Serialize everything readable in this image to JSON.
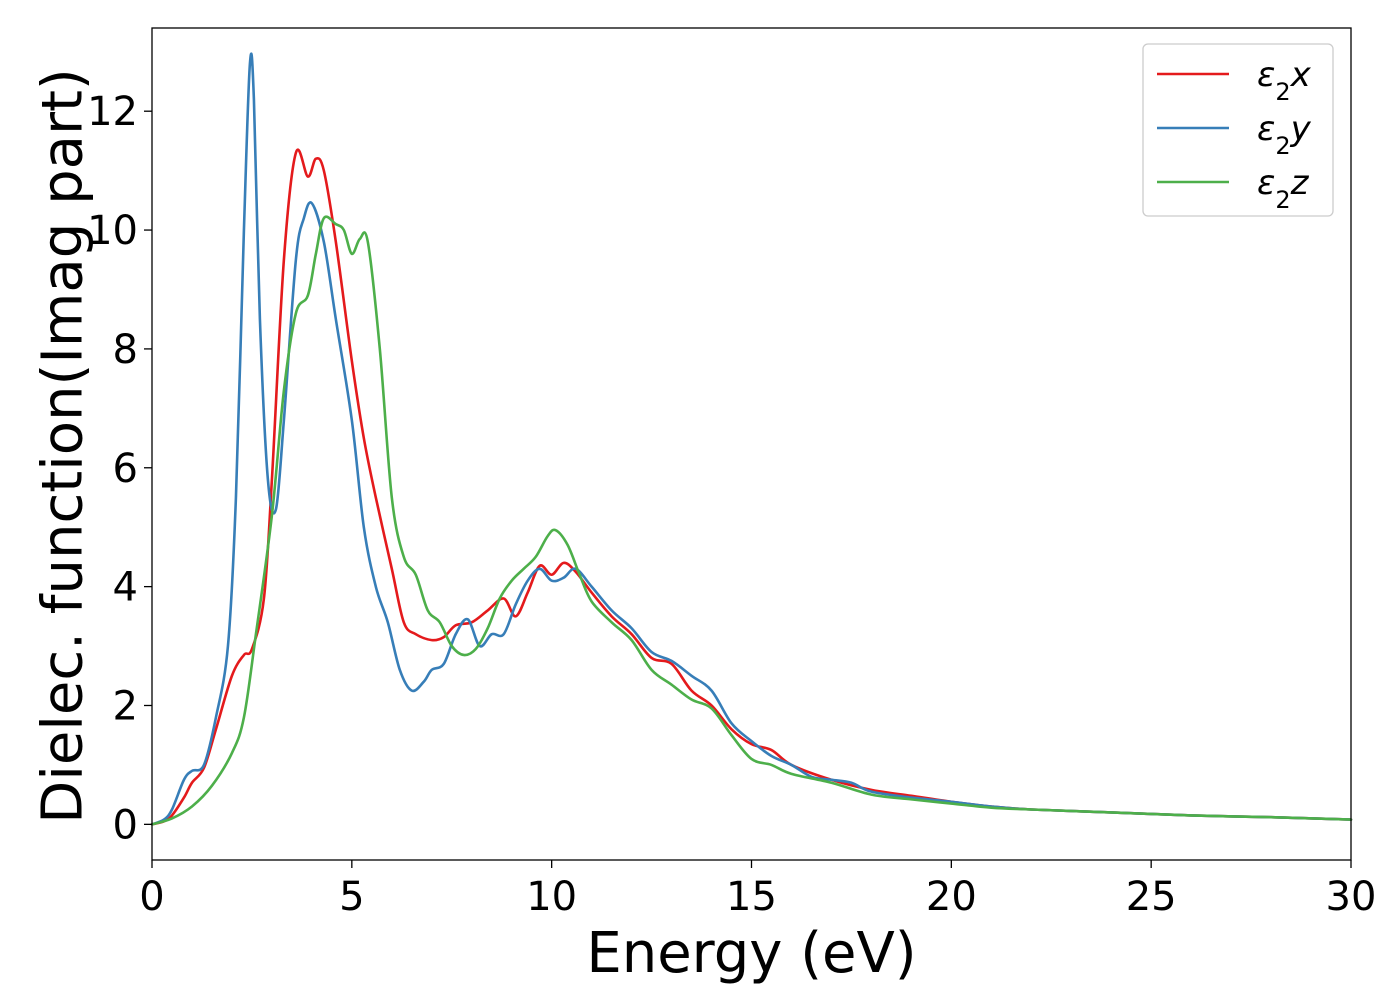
{
  "chart_data": {
    "type": "line",
    "title": "",
    "xlabel": "Energy (eV)",
    "ylabel": "Dielec. function(Imag part)",
    "xlim": [
      0,
      30
    ],
    "ylim": [
      -0.6,
      13.4
    ],
    "xticks": [
      0,
      5,
      10,
      15,
      20,
      25,
      30
    ],
    "xtick_labels": [
      "0",
      "5",
      "10",
      "15",
      "20",
      "25",
      "30"
    ],
    "yticks": [
      0,
      2,
      4,
      6,
      8,
      10,
      12
    ],
    "ytick_labels": [
      "0",
      "2",
      "4",
      "6",
      "8",
      "10",
      "12"
    ],
    "grid": false,
    "legend_position": "top-right",
    "series": [
      {
        "name": "ε2x",
        "legend_base": "ε",
        "legend_sub": "2",
        "legend_var": "x",
        "color": "#e41a1c",
        "x": [
          0,
          0.3,
          0.5,
          0.8,
          1.0,
          1.3,
          1.6,
          2.0,
          2.3,
          2.5,
          2.8,
          3.0,
          3.3,
          3.6,
          3.9,
          4.1,
          4.3,
          4.6,
          5.0,
          5.3,
          5.6,
          6.0,
          6.3,
          6.6,
          7.0,
          7.3,
          7.6,
          8.0,
          8.4,
          8.8,
          9.1,
          9.4,
          9.7,
          10.0,
          10.3,
          10.6,
          11.0,
          11.5,
          12.0,
          12.5,
          13.0,
          13.5,
          14.0,
          14.5,
          15.0,
          15.5,
          16.0,
          17.0,
          18.0,
          19.0,
          20.0,
          21.0,
          22.0,
          24.0,
          26.0,
          28.0,
          30.0
        ],
        "y": [
          0,
          0.05,
          0.15,
          0.45,
          0.7,
          0.95,
          1.6,
          2.5,
          2.85,
          2.95,
          3.8,
          5.8,
          9.5,
          11.3,
          10.9,
          11.2,
          11.0,
          9.8,
          7.8,
          6.5,
          5.5,
          4.3,
          3.4,
          3.2,
          3.1,
          3.15,
          3.35,
          3.4,
          3.6,
          3.8,
          3.5,
          3.9,
          4.35,
          4.2,
          4.4,
          4.25,
          3.9,
          3.5,
          3.2,
          2.8,
          2.7,
          2.25,
          2.0,
          1.6,
          1.35,
          1.25,
          1.0,
          0.75,
          0.58,
          0.48,
          0.38,
          0.3,
          0.25,
          0.2,
          0.15,
          0.12,
          0.08
        ]
      },
      {
        "name": "ε2y",
        "legend_base": "ε",
        "legend_sub": "2",
        "legend_var": "y",
        "color": "#377eb8",
        "x": [
          0,
          0.3,
          0.5,
          0.8,
          1.0,
          1.3,
          1.6,
          1.9,
          2.1,
          2.3,
          2.45,
          2.55,
          2.7,
          2.9,
          3.1,
          3.3,
          3.6,
          3.8,
          4.0,
          4.3,
          4.6,
          5.0,
          5.3,
          5.6,
          5.9,
          6.2,
          6.5,
          6.8,
          7.0,
          7.3,
          7.6,
          7.9,
          8.2,
          8.5,
          8.8,
          9.1,
          9.4,
          9.7,
          10.0,
          10.3,
          10.6,
          11.0,
          11.5,
          12.0,
          12.5,
          13.0,
          13.5,
          14.0,
          14.5,
          15.0,
          15.5,
          16.0,
          16.5,
          17.0,
          17.5,
          18.0,
          19.0,
          20.0,
          21.0,
          22.0,
          24.0,
          26.0,
          28.0,
          30.0
        ],
        "y": [
          0,
          0.08,
          0.25,
          0.75,
          0.9,
          1.0,
          1.8,
          3.0,
          5.5,
          10.0,
          12.8,
          12.2,
          8.5,
          5.8,
          5.3,
          6.8,
          9.5,
          10.2,
          10.45,
          9.8,
          8.5,
          6.8,
          5.0,
          4.0,
          3.4,
          2.6,
          2.25,
          2.4,
          2.6,
          2.7,
          3.2,
          3.45,
          3.0,
          3.2,
          3.2,
          3.7,
          4.1,
          4.3,
          4.1,
          4.15,
          4.3,
          4.0,
          3.6,
          3.3,
          2.9,
          2.75,
          2.5,
          2.25,
          1.7,
          1.4,
          1.15,
          1.0,
          0.8,
          0.75,
          0.7,
          0.55,
          0.45,
          0.38,
          0.3,
          0.25,
          0.2,
          0.15,
          0.12,
          0.08
        ]
      },
      {
        "name": "ε2z",
        "legend_base": "ε",
        "legend_sub": "2",
        "legend_var": "z",
        "color": "#4daf4a",
        "x": [
          0,
          0.5,
          1.0,
          1.5,
          2.0,
          2.3,
          2.6,
          3.0,
          3.3,
          3.6,
          3.9,
          4.1,
          4.3,
          4.6,
          4.8,
          5.0,
          5.2,
          5.4,
          5.7,
          6.0,
          6.3,
          6.6,
          6.9,
          7.2,
          7.5,
          7.8,
          8.1,
          8.4,
          8.7,
          9.0,
          9.3,
          9.6,
          9.9,
          10.1,
          10.4,
          10.7,
          11.0,
          11.5,
          12.0,
          12.5,
          13.0,
          13.5,
          14.0,
          14.5,
          15.0,
          15.5,
          16.0,
          17.0,
          18.0,
          19.0,
          20.0,
          21.0,
          22.0,
          24.0,
          26.0,
          28.0,
          30.0
        ],
        "y": [
          0,
          0.1,
          0.3,
          0.65,
          1.2,
          1.8,
          3.2,
          5.2,
          7.3,
          8.6,
          8.9,
          9.6,
          10.2,
          10.1,
          10.0,
          9.6,
          9.85,
          9.8,
          8.0,
          5.5,
          4.5,
          4.2,
          3.6,
          3.4,
          3.0,
          2.85,
          2.95,
          3.3,
          3.8,
          4.1,
          4.3,
          4.5,
          4.85,
          4.95,
          4.7,
          4.2,
          3.75,
          3.4,
          3.1,
          2.6,
          2.35,
          2.1,
          1.95,
          1.5,
          1.1,
          1.0,
          0.85,
          0.7,
          0.5,
          0.42,
          0.35,
          0.28,
          0.25,
          0.2,
          0.15,
          0.12,
          0.08
        ]
      }
    ]
  }
}
